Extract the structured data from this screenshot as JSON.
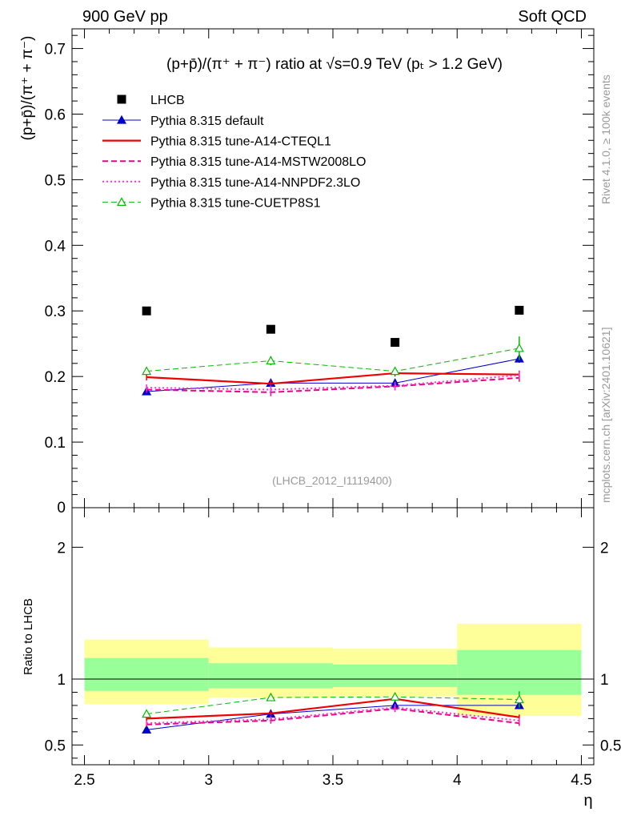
{
  "header": {
    "left": "900 GeV pp",
    "right": "Soft QCD"
  },
  "side_labels": {
    "rivet": "Rivet 4.1.0, ≥ 100k events",
    "mcplots": "mcplots.cern.ch [arXiv:2401.10621]"
  },
  "colors": {
    "data": "#000000",
    "default": "#0000cc",
    "cteql1": "#ee0000",
    "mstw": "#ee0088",
    "nnpdf": "#ff33cc",
    "cuetp8s1": "#00bb00",
    "band_inner": "#99ff99",
    "band_outer": "#ffff99"
  },
  "chart_data": {
    "type": "scatter",
    "title": "(p+p̄)/(π⁺ + π⁻) ratio at √s=0.9 TeV (pₜ > 1.2 GeV)",
    "analysis_id": "(LHCB_2012_I1119400)",
    "xlabel": "η",
    "ylabel": "(p+p̄)/(π⁺ + π⁻)",
    "ratio_ylabel": "Ratio to LHCB",
    "xlim": [
      2.45,
      4.55
    ],
    "ylim": [
      0,
      0.73
    ],
    "ratio_ylim": [
      0.35,
      2.3
    ],
    "x_ticks": [
      "2.5",
      "3",
      "3.5",
      "4",
      "4.5"
    ],
    "y_ticks": [
      "0.1",
      "0.2",
      "0.3",
      "0.4",
      "0.5",
      "0.6",
      "0.7"
    ],
    "y_zero_label": "0",
    "ratio_y_ticks": [
      "0.5",
      "1",
      "2"
    ],
    "bins": [
      [
        2.5,
        3.0
      ],
      [
        3.0,
        3.5
      ],
      [
        3.5,
        4.0
      ],
      [
        4.0,
        4.5
      ]
    ],
    "x": [
      2.75,
      3.25,
      3.75,
      4.25
    ],
    "data": {
      "name": "LHCB",
      "values": [
        0.3,
        0.272,
        0.252,
        0.301
      ]
    },
    "ratio_band_inner": [
      [
        0.91,
        1.16
      ],
      [
        0.93,
        1.12
      ],
      [
        0.94,
        1.11
      ],
      [
        0.88,
        1.22
      ]
    ],
    "ratio_band_outer": [
      [
        0.81,
        1.3
      ],
      [
        0.86,
        1.24
      ],
      [
        0.87,
        1.23
      ],
      [
        0.72,
        1.42
      ]
    ],
    "series": [
      {
        "name": "Pythia 8.315 default",
        "key": "default",
        "values": [
          0.177,
          0.19,
          0.19,
          0.227
        ],
        "ratio": [
          0.615,
          0.735,
          0.8,
          0.8
        ],
        "errors": [
          0.004,
          0.005,
          0.005,
          0.006
        ],
        "line": "solid",
        "width": 1,
        "marker": "triangle-filled"
      },
      {
        "name": "Pythia 8.315 tune-A14-CTEQL1",
        "key": "cteql1",
        "values": [
          0.199,
          0.189,
          0.205,
          0.203
        ],
        "ratio": [
          0.7,
          0.74,
          0.85,
          0.71
        ],
        "errors": [
          0.005,
          0.005,
          0.005,
          0.006
        ],
        "line": "solid",
        "width": 2.2,
        "marker": "none"
      },
      {
        "name": "Pythia 8.315 tune-A14-MSTW2008LO",
        "key": "mstw",
        "values": [
          0.18,
          0.176,
          0.185,
          0.198
        ],
        "ratio": [
          0.655,
          0.685,
          0.775,
          0.665
        ],
        "errors": [
          0.005,
          0.006,
          0.006,
          0.006
        ],
        "line": "dashed",
        "width": 2,
        "marker": "none"
      },
      {
        "name": "Pythia 8.315 tune-A14-NNPDF2.3LO",
        "key": "nnpdf",
        "values": [
          0.183,
          0.18,
          0.186,
          0.202
        ],
        "ratio": [
          0.665,
          0.695,
          0.785,
          0.685
        ],
        "errors": [
          0.005,
          0.006,
          0.006,
          0.006
        ],
        "line": "dotted",
        "width": 2,
        "marker": "none"
      },
      {
        "name": "Pythia 8.315 tune-CUETP8S1",
        "key": "cuetp8s1",
        "values": [
          0.208,
          0.224,
          0.208,
          0.243
        ],
        "ratio": [
          0.735,
          0.86,
          0.865,
          0.845
        ],
        "errors": [
          0.006,
          0.007,
          0.006,
          0.018
        ],
        "line": "dashed",
        "width": 1,
        "marker": "triangle-open"
      }
    ]
  }
}
